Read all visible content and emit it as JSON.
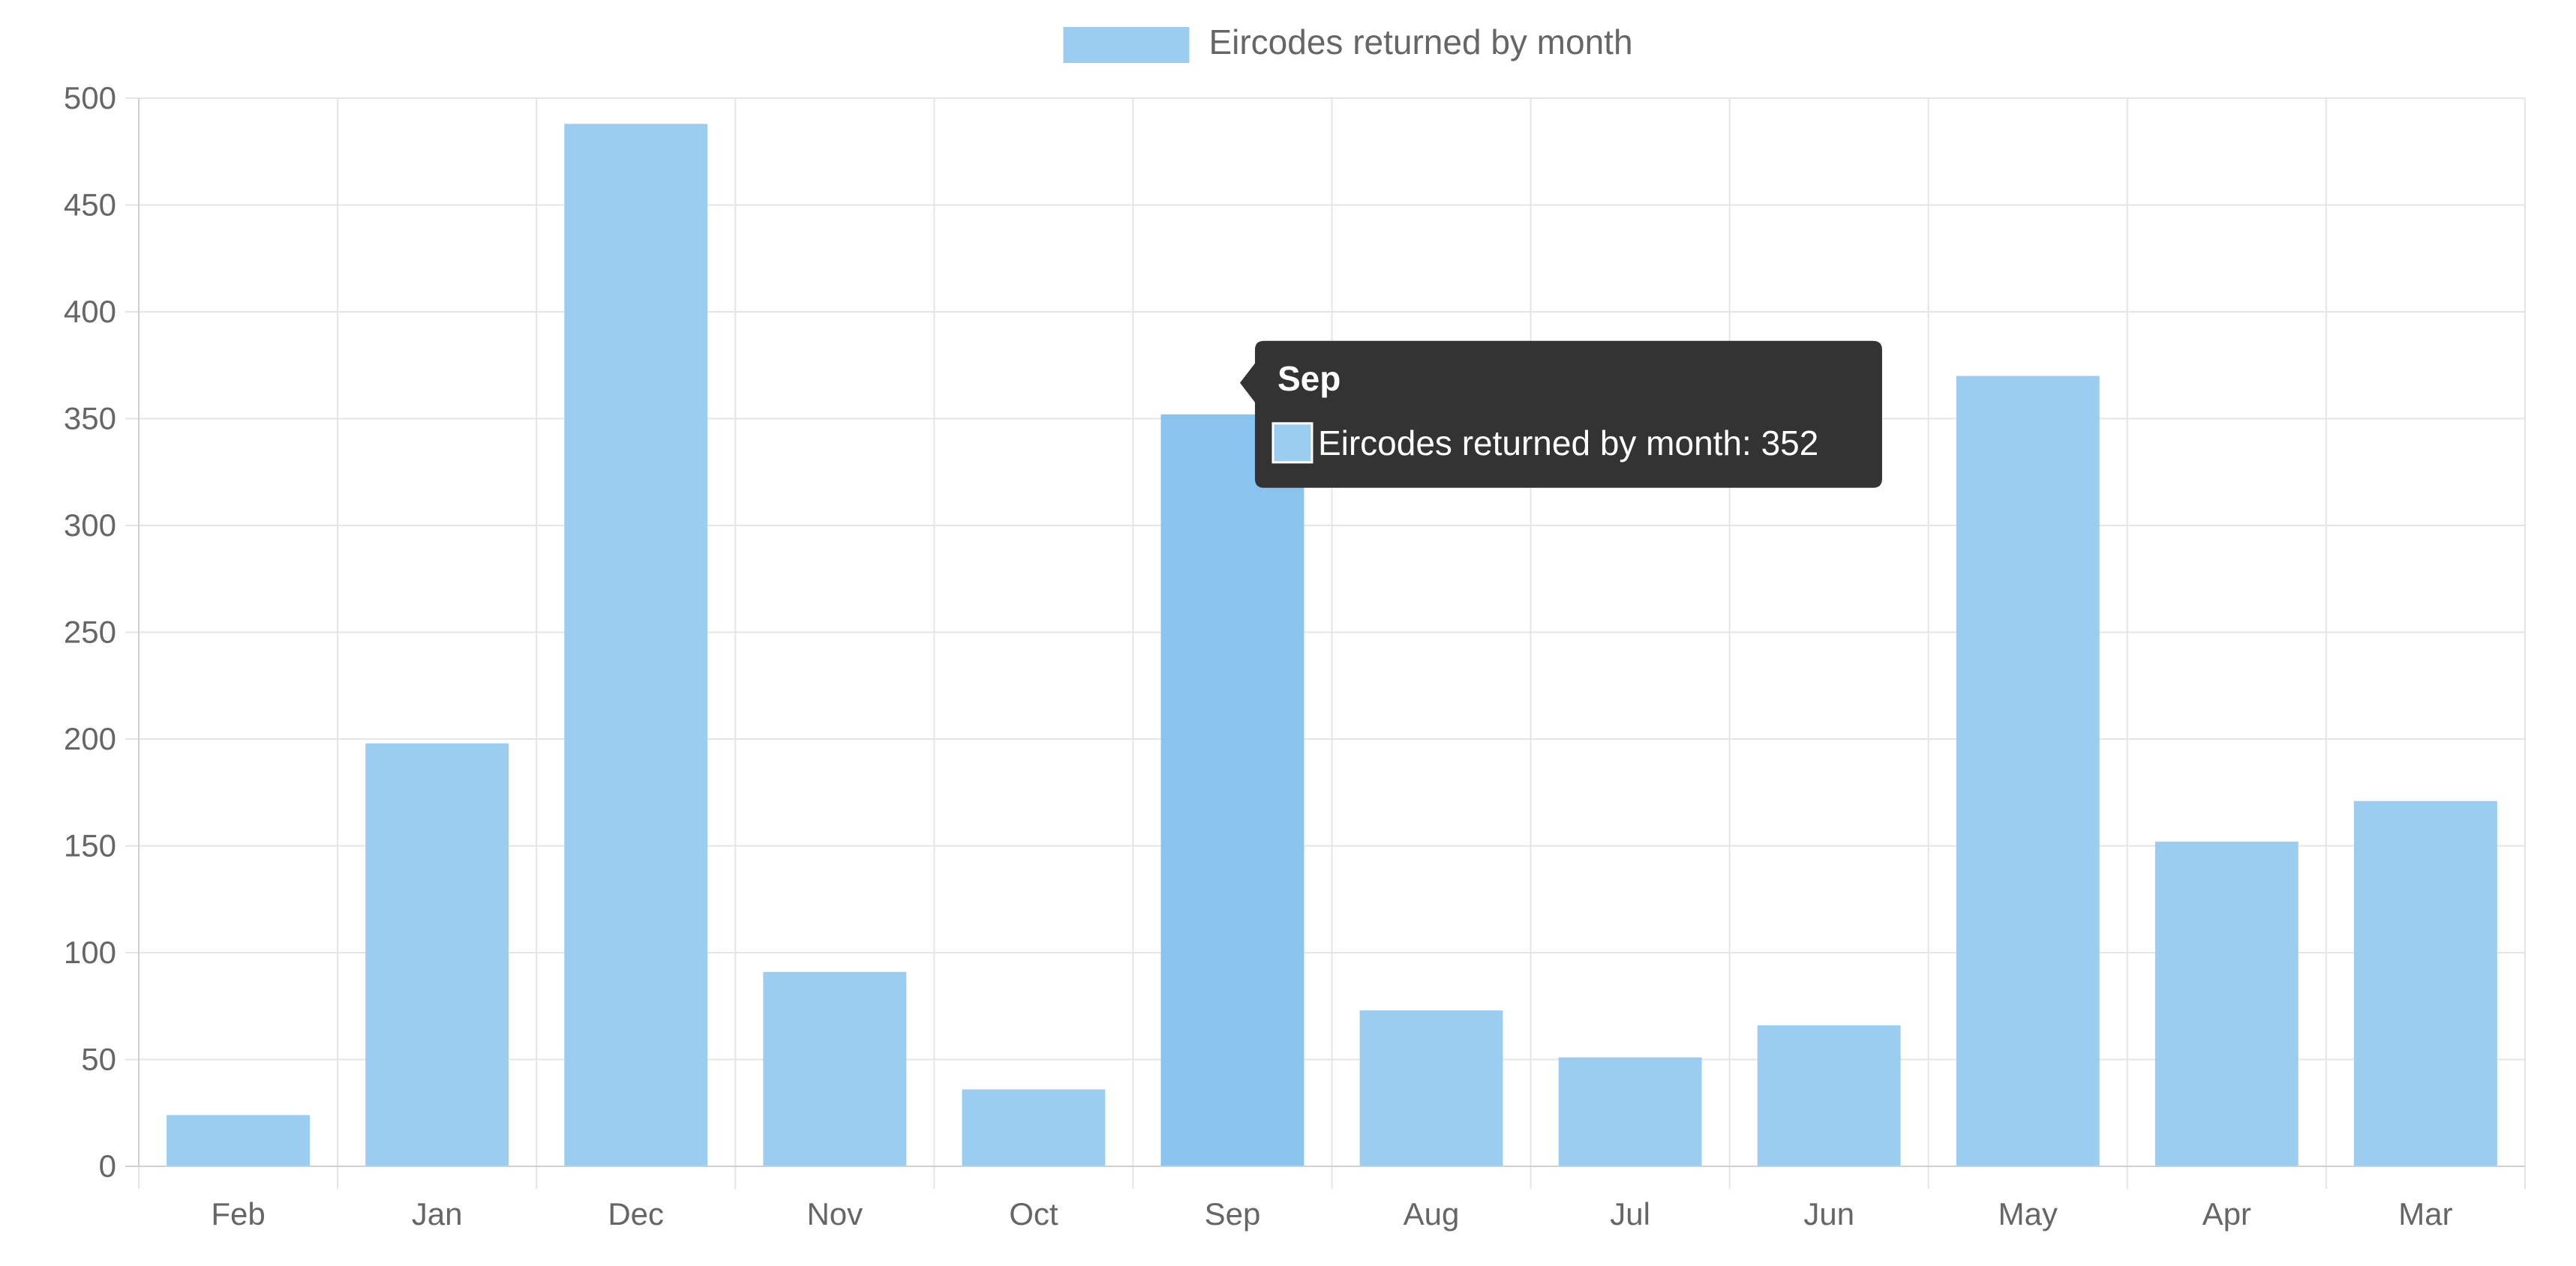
{
  "chart_data": {
    "type": "bar",
    "categories": [
      "Feb",
      "Jan",
      "Dec",
      "Nov",
      "Oct",
      "Sep",
      "Aug",
      "Jul",
      "Jun",
      "May",
      "Apr",
      "Mar"
    ],
    "series": [
      {
        "name": "Eircodes returned by month",
        "values": [
          24,
          198,
          488,
          91,
          36,
          352,
          73,
          51,
          66,
          370,
          152,
          171
        ]
      }
    ],
    "yticks": [
      0,
      50,
      100,
      150,
      200,
      250,
      300,
      350,
      400,
      450,
      500
    ],
    "ylim": [
      0,
      500
    ],
    "grid": true,
    "legend_position": "top-center",
    "colors": {
      "bar_fill": "#9bcdf0",
      "bar_fill_hover": "#88c4ee",
      "grid": "#e5e5e5",
      "tick_text": "#666666",
      "tooltip_bg": "#333333"
    },
    "tooltip": {
      "title": "Sep",
      "label": "Eircodes returned by month: 352"
    }
  }
}
